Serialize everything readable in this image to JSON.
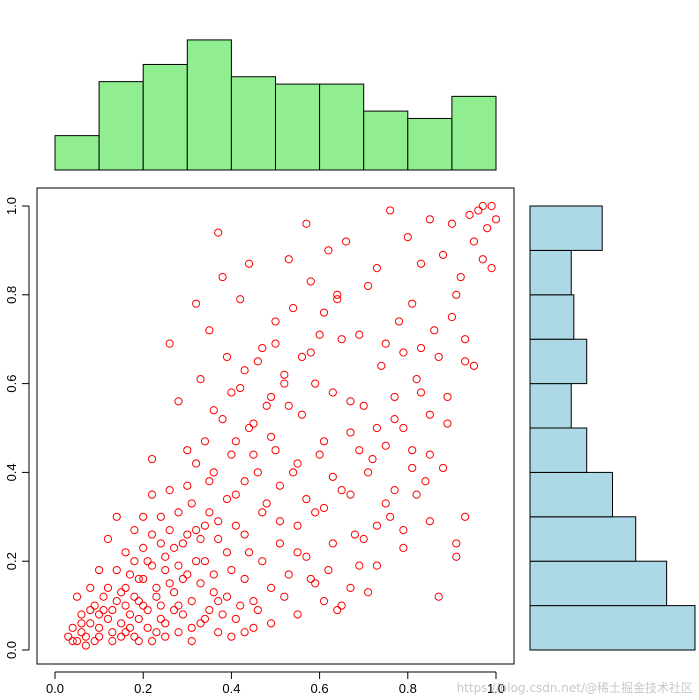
{
  "chart_data": [
    {
      "type": "scatter",
      "title": "",
      "xlabel": "",
      "ylabel": "",
      "xlim": [
        0,
        1
      ],
      "ylim": [
        0,
        1
      ],
      "x_ticks": [
        "0.0",
        "0.2",
        "0.4",
        "0.6",
        "0.8",
        "1.0"
      ],
      "y_ticks": [
        "0.0",
        "0.2",
        "0.4",
        "0.6",
        "0.8",
        "1.0"
      ],
      "x_tick_values": [
        0,
        0.2,
        0.4,
        0.6,
        0.8,
        1.0
      ],
      "y_tick_values": [
        0,
        0.2,
        0.4,
        0.6,
        0.8,
        1.0
      ],
      "marker": "open-circle",
      "color": "#ff0000",
      "grid": false,
      "points": [
        [
          0.03,
          0.03
        ],
        [
          0.04,
          0.05
        ],
        [
          0.05,
          0.02
        ],
        [
          0.06,
          0.04
        ],
        [
          0.07,
          0.03
        ],
        [
          0.05,
          0.12
        ],
        [
          0.08,
          0.06
        ],
        [
          0.09,
          0.02
        ],
        [
          0.1,
          0.05
        ],
        [
          0.11,
          0.09
        ],
        [
          0.12,
          0.07
        ],
        [
          0.13,
          0.04
        ],
        [
          0.14,
          0.11
        ],
        [
          0.15,
          0.06
        ],
        [
          0.16,
          0.14
        ],
        [
          0.17,
          0.08
        ],
        [
          0.18,
          0.03
        ],
        [
          0.19,
          0.16
        ],
        [
          0.2,
          0.1
        ],
        [
          0.21,
          0.05
        ],
        [
          0.22,
          0.19
        ],
        [
          0.23,
          0.12
        ],
        [
          0.24,
          0.07
        ],
        [
          0.25,
          0.21
        ],
        [
          0.26,
          0.15
        ],
        [
          0.27,
          0.09
        ],
        [
          0.28,
          0.04
        ],
        [
          0.29,
          0.24
        ],
        [
          0.3,
          0.17
        ],
        [
          0.31,
          0.11
        ],
        [
          0.32,
          0.27
        ],
        [
          0.33,
          0.06
        ],
        [
          0.34,
          0.2
        ],
        [
          0.35,
          0.31
        ],
        [
          0.36,
          0.13
        ],
        [
          0.37,
          0.25
        ],
        [
          0.38,
          0.08
        ],
        [
          0.39,
          0.34
        ],
        [
          0.4,
          0.18
        ],
        [
          0.41,
          0.28
        ],
        [
          0.42,
          0.1
        ],
        [
          0.43,
          0.38
        ],
        [
          0.44,
          0.22
        ],
        [
          0.45,
          0.05
        ],
        [
          0.12,
          0.25
        ],
        [
          0.14,
          0.3
        ],
        [
          0.1,
          0.18
        ],
        [
          0.08,
          0.14
        ],
        [
          0.16,
          0.22
        ],
        [
          0.18,
          0.27
        ],
        [
          0.2,
          0.16
        ],
        [
          0.22,
          0.43
        ],
        [
          0.24,
          0.3
        ],
        [
          0.26,
          0.69
        ],
        [
          0.28,
          0.56
        ],
        [
          0.3,
          0.45
        ],
        [
          0.32,
          0.78
        ],
        [
          0.33,
          0.61
        ],
        [
          0.35,
          0.72
        ],
        [
          0.36,
          0.54
        ],
        [
          0.37,
          0.94
        ],
        [
          0.38,
          0.84
        ],
        [
          0.39,
          0.66
        ],
        [
          0.4,
          0.58
        ],
        [
          0.41,
          0.47
        ],
        [
          0.42,
          0.79
        ],
        [
          0.43,
          0.63
        ],
        [
          0.44,
          0.87
        ],
        [
          0.45,
          0.51
        ],
        [
          0.46,
          0.4
        ],
        [
          0.47,
          0.68
        ],
        [
          0.48,
          0.33
        ],
        [
          0.49,
          0.57
        ],
        [
          0.5,
          0.74
        ],
        [
          0.5,
          0.45
        ],
        [
          0.51,
          0.29
        ],
        [
          0.52,
          0.62
        ],
        [
          0.53,
          0.88
        ],
        [
          0.54,
          0.4
        ],
        [
          0.55,
          0.22
        ],
        [
          0.56,
          0.53
        ],
        [
          0.57,
          0.96
        ],
        [
          0.58,
          0.67
        ],
        [
          0.59,
          0.31
        ],
        [
          0.6,
          0.44
        ],
        [
          0.61,
          0.76
        ],
        [
          0.62,
          0.18
        ],
        [
          0.63,
          0.58
        ],
        [
          0.64,
          0.8
        ],
        [
          0.65,
          0.36
        ],
        [
          0.66,
          0.92
        ],
        [
          0.67,
          0.49
        ],
        [
          0.68,
          0.26
        ],
        [
          0.69,
          0.71
        ],
        [
          0.7,
          0.55
        ],
        [
          0.71,
          0.13
        ],
        [
          0.72,
          0.43
        ],
        [
          0.73,
          0.86
        ],
        [
          0.74,
          0.64
        ],
        [
          0.75,
          0.33
        ],
        [
          0.76,
          0.99
        ],
        [
          0.77,
          0.52
        ],
        [
          0.78,
          0.74
        ],
        [
          0.79,
          0.27
        ],
        [
          0.8,
          0.93
        ],
        [
          0.81,
          0.45
        ],
        [
          0.82,
          0.61
        ],
        [
          0.83,
          0.87
        ],
        [
          0.84,
          0.38
        ],
        [
          0.85,
          0.97
        ],
        [
          0.86,
          0.72
        ],
        [
          0.87,
          0.12
        ],
        [
          0.88,
          0.89
        ],
        [
          0.89,
          0.57
        ],
        [
          0.9,
          0.96
        ],
        [
          0.91,
          0.21
        ],
        [
          0.92,
          0.84
        ],
        [
          0.93,
          0.65
        ],
        [
          0.94,
          0.98
        ],
        [
          0.95,
          0.92
        ],
        [
          0.96,
          0.99
        ],
        [
          0.97,
          0.88
        ],
        [
          0.98,
          0.95
        ],
        [
          0.99,
          1.0
        ],
        [
          1.0,
          0.97
        ],
        [
          0.99,
          0.86
        ],
        [
          0.97,
          1.0
        ],
        [
          0.95,
          0.64
        ],
        [
          0.93,
          0.3
        ],
        [
          0.9,
          0.75
        ],
        [
          0.15,
          0.03
        ],
        [
          0.17,
          0.05
        ],
        [
          0.19,
          0.02
        ],
        [
          0.21,
          0.09
        ],
        [
          0.23,
          0.04
        ],
        [
          0.25,
          0.06
        ],
        [
          0.27,
          0.13
        ],
        [
          0.29,
          0.08
        ],
        [
          0.31,
          0.05
        ],
        [
          0.33,
          0.15
        ],
        [
          0.35,
          0.09
        ],
        [
          0.37,
          0.04
        ],
        [
          0.39,
          0.12
        ],
        [
          0.41,
          0.07
        ],
        [
          0.43,
          0.16
        ],
        [
          0.45,
          0.11
        ],
        [
          0.47,
          0.2
        ],
        [
          0.49,
          0.14
        ],
        [
          0.51,
          0.24
        ],
        [
          0.53,
          0.17
        ],
        [
          0.55,
          0.28
        ],
        [
          0.57,
          0.21
        ],
        [
          0.59,
          0.15
        ],
        [
          0.61,
          0.32
        ],
        [
          0.63,
          0.24
        ],
        [
          0.65,
          0.1
        ],
        [
          0.67,
          0.35
        ],
        [
          0.69,
          0.19
        ],
        [
          0.71,
          0.4
        ],
        [
          0.73,
          0.28
        ],
        [
          0.75,
          0.46
        ],
        [
          0.77,
          0.36
        ],
        [
          0.79,
          0.5
        ],
        [
          0.81,
          0.41
        ],
        [
          0.83,
          0.58
        ],
        [
          0.85,
          0.44
        ],
        [
          0.87,
          0.66
        ],
        [
          0.89,
          0.51
        ],
        [
          0.91,
          0.8
        ],
        [
          0.93,
          0.7
        ],
        [
          0.06,
          0.08
        ],
        [
          0.09,
          0.1
        ],
        [
          0.11,
          0.12
        ],
        [
          0.13,
          0.09
        ],
        [
          0.15,
          0.13
        ],
        [
          0.17,
          0.17
        ],
        [
          0.19,
          0.11
        ],
        [
          0.21,
          0.2
        ],
        [
          0.23,
          0.14
        ],
        [
          0.25,
          0.18
        ],
        [
          0.27,
          0.23
        ],
        [
          0.29,
          0.16
        ],
        [
          0.31,
          0.33
        ],
        [
          0.33,
          0.25
        ],
        [
          0.35,
          0.38
        ],
        [
          0.37,
          0.29
        ],
        [
          0.39,
          0.22
        ],
        [
          0.41,
          0.35
        ],
        [
          0.43,
          0.26
        ],
        [
          0.45,
          0.44
        ],
        [
          0.47,
          0.31
        ],
        [
          0.49,
          0.48
        ],
        [
          0.51,
          0.37
        ],
        [
          0.53,
          0.55
        ],
        [
          0.55,
          0.42
        ],
        [
          0.57,
          0.34
        ],
        [
          0.59,
          0.6
        ],
        [
          0.61,
          0.47
        ],
        [
          0.63,
          0.39
        ],
        [
          0.65,
          0.7
        ],
        [
          0.67,
          0.56
        ],
        [
          0.69,
          0.45
        ],
        [
          0.71,
          0.82
        ],
        [
          0.73,
          0.5
        ],
        [
          0.75,
          0.69
        ],
        [
          0.77,
          0.57
        ],
        [
          0.79,
          0.67
        ],
        [
          0.81,
          0.78
        ],
        [
          0.83,
          0.68
        ],
        [
          0.85,
          0.53
        ],
        [
          0.04,
          0.02
        ],
        [
          0.07,
          0.01
        ],
        [
          0.1,
          0.03
        ],
        [
          0.13,
          0.02
        ],
        [
          0.16,
          0.04
        ],
        [
          0.19,
          0.07
        ],
        [
          0.22,
          0.02
        ],
        [
          0.25,
          0.03
        ],
        [
          0.28,
          0.1
        ],
        [
          0.31,
          0.02
        ],
        [
          0.34,
          0.07
        ],
        [
          0.37,
          0.11
        ],
        [
          0.4,
          0.03
        ],
        [
          0.43,
          0.04
        ],
        [
          0.46,
          0.09
        ],
        [
          0.49,
          0.06
        ],
        [
          0.52,
          0.12
        ],
        [
          0.55,
          0.08
        ],
        [
          0.58,
          0.16
        ],
        [
          0.61,
          0.11
        ],
        [
          0.64,
          0.09
        ],
        [
          0.67,
          0.14
        ],
        [
          0.7,
          0.25
        ],
        [
          0.73,
          0.19
        ],
        [
          0.76,
          0.3
        ],
        [
          0.79,
          0.23
        ],
        [
          0.82,
          0.35
        ],
        [
          0.85,
          0.29
        ],
        [
          0.88,
          0.41
        ],
        [
          0.91,
          0.24
        ],
        [
          0.26,
          0.36
        ],
        [
          0.28,
          0.31
        ],
        [
          0.3,
          0.26
        ],
        [
          0.32,
          0.42
        ],
        [
          0.34,
          0.47
        ],
        [
          0.36,
          0.4
        ],
        [
          0.38,
          0.52
        ],
        [
          0.4,
          0.44
        ],
        [
          0.42,
          0.59
        ],
        [
          0.44,
          0.5
        ],
        [
          0.46,
          0.65
        ],
        [
          0.48,
          0.55
        ],
        [
          0.5,
          0.69
        ],
        [
          0.52,
          0.6
        ],
        [
          0.54,
          0.77
        ],
        [
          0.56,
          0.66
        ],
        [
          0.58,
          0.83
        ],
        [
          0.6,
          0.71
        ],
        [
          0.62,
          0.9
        ],
        [
          0.64,
          0.79
        ],
        [
          0.18,
          0.12
        ],
        [
          0.2,
          0.23
        ],
        [
          0.22,
          0.26
        ],
        [
          0.24,
          0.1
        ],
        [
          0.26,
          0.27
        ],
        [
          0.28,
          0.19
        ],
        [
          0.3,
          0.37
        ],
        [
          0.32,
          0.2
        ],
        [
          0.34,
          0.28
        ],
        [
          0.36,
          0.17
        ],
        [
          0.14,
          0.18
        ],
        [
          0.16,
          0.1
        ],
        [
          0.18,
          0.2
        ],
        [
          0.12,
          0.14
        ],
        [
          0.1,
          0.08
        ],
        [
          0.08,
          0.09
        ],
        [
          0.06,
          0.06
        ],
        [
          0.2,
          0.3
        ],
        [
          0.22,
          0.35
        ],
        [
          0.24,
          0.24
        ]
      ]
    },
    {
      "type": "bar",
      "role": "top-marginal-histogram",
      "orientation": "vertical",
      "title": "",
      "color": "#90ee90",
      "bin_edges": [
        0.0,
        0.1,
        0.2,
        0.3,
        0.4,
        0.5,
        0.6,
        0.7,
        0.8,
        0.9,
        1.0
      ],
      "values": [
        14,
        36,
        43,
        53,
        38,
        35,
        35,
        24,
        21,
        30
      ],
      "ylim": [
        0,
        55
      ]
    },
    {
      "type": "bar",
      "role": "right-marginal-histogram",
      "orientation": "horizontal",
      "title": "",
      "color": "#add8e6",
      "bin_edges": [
        0.0,
        0.1,
        0.2,
        0.3,
        0.4,
        0.5,
        0.6,
        0.7,
        0.8,
        0.9,
        1.0
      ],
      "values": [
        64,
        53,
        41,
        32,
        22,
        16,
        22,
        17,
        16,
        28
      ],
      "xlim": [
        0,
        64
      ]
    }
  ],
  "watermark": "https://blog.csdn.net/@稀土掘金技术社区",
  "colors": {
    "points": "#ff0000",
    "top_hist_fill": "#90ee90",
    "right_hist_fill": "#add8e6",
    "stroke": "#000000"
  }
}
